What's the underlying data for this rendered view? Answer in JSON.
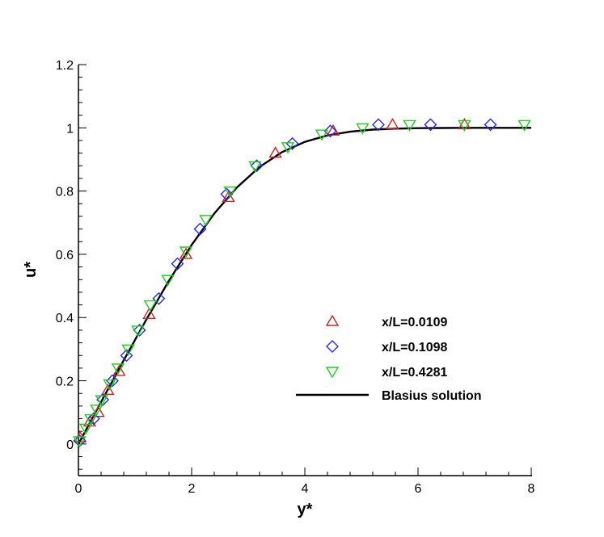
{
  "chart_data": {
    "type": "scatter",
    "xlabel": "y*",
    "ylabel": "u*",
    "xlim": [
      0,
      8
    ],
    "ylim": [
      -0.1,
      1.2
    ],
    "x_ticks": [
      "0",
      "2",
      "4",
      "6",
      "8"
    ],
    "y_ticks": [
      "0",
      "0.2",
      "0.4",
      "0.6",
      "0.8",
      "1",
      "1.2"
    ],
    "grid": false,
    "legend_position": "center-right",
    "series": [
      {
        "name": "x/L=0.0109",
        "marker": "triangle-up",
        "color": "#d42020",
        "points": [
          [
            0.03,
            0.02
          ],
          [
            0.2,
            0.07
          ],
          [
            0.35,
            0.1
          ],
          [
            0.52,
            0.17
          ],
          [
            0.72,
            0.23
          ],
          [
            1.25,
            0.41
          ],
          [
            1.9,
            0.6
          ],
          [
            2.65,
            0.78
          ],
          [
            3.48,
            0.92
          ],
          [
            4.5,
            0.99
          ],
          [
            5.55,
            1.01
          ],
          [
            6.82,
            1.01
          ]
        ]
      },
      {
        "name": "x/L=0.1098",
        "marker": "diamond",
        "color": "#2b2bdf",
        "points": [
          [
            0.02,
            0.01
          ],
          [
            0.27,
            0.08
          ],
          [
            0.43,
            0.14
          ],
          [
            0.6,
            0.2
          ],
          [
            0.85,
            0.28
          ],
          [
            1.08,
            0.36
          ],
          [
            1.42,
            0.46
          ],
          [
            1.75,
            0.57
          ],
          [
            2.15,
            0.68
          ],
          [
            2.62,
            0.79
          ],
          [
            3.15,
            0.88
          ],
          [
            3.78,
            0.95
          ],
          [
            4.45,
            0.99
          ],
          [
            5.3,
            1.01
          ],
          [
            6.22,
            1.01
          ],
          [
            7.28,
            1.01
          ]
        ]
      },
      {
        "name": "x/L=0.4281",
        "marker": "triangle-down",
        "color": "#22cc22",
        "points": [
          [
            0.02,
            0.01
          ],
          [
            0.13,
            0.05
          ],
          [
            0.22,
            0.08
          ],
          [
            0.32,
            0.11
          ],
          [
            0.41,
            0.14
          ],
          [
            0.55,
            0.19
          ],
          [
            0.7,
            0.24
          ],
          [
            0.88,
            0.3
          ],
          [
            1.05,
            0.36
          ],
          [
            1.27,
            0.44
          ],
          [
            1.58,
            0.52
          ],
          [
            1.9,
            0.61
          ],
          [
            2.25,
            0.71
          ],
          [
            2.68,
            0.8
          ],
          [
            3.12,
            0.88
          ],
          [
            3.7,
            0.94
          ],
          [
            4.3,
            0.98
          ],
          [
            5.02,
            1.0
          ],
          [
            5.85,
            1.01
          ],
          [
            6.82,
            1.01
          ],
          [
            7.88,
            1.01
          ]
        ]
      },
      {
        "name": "Blasius solution",
        "type": "line",
        "color": "#000000",
        "points": [
          [
            0,
            0
          ],
          [
            0.4,
            0.1328
          ],
          [
            0.8,
            0.2647
          ],
          [
            1.2,
            0.3938
          ],
          [
            1.6,
            0.5168
          ],
          [
            2.0,
            0.6298
          ],
          [
            2.4,
            0.729
          ],
          [
            2.8,
            0.8115
          ],
          [
            3.2,
            0.8761
          ],
          [
            3.6,
            0.9233
          ],
          [
            4.0,
            0.9555
          ],
          [
            4.4,
            0.9759
          ],
          [
            4.8,
            0.9878
          ],
          [
            5.2,
            0.9943
          ],
          [
            5.6,
            0.9975
          ],
          [
            6.0,
            0.999
          ],
          [
            6.4,
            0.9996
          ],
          [
            6.8,
            0.9999
          ],
          [
            7.2,
            1.0
          ],
          [
            7.6,
            1.0
          ],
          [
            8.0,
            1.0
          ]
        ]
      }
    ]
  }
}
